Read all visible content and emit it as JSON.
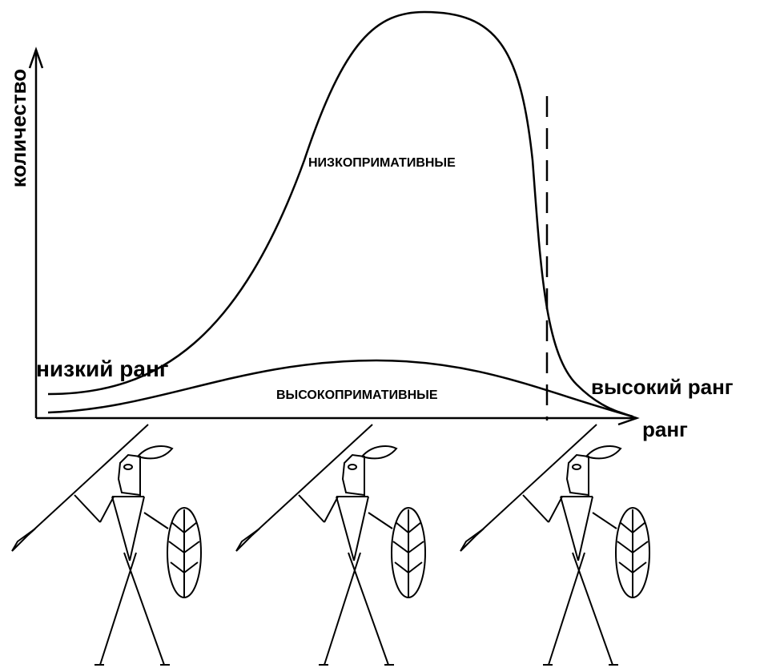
{
  "y_axis_label": "количество",
  "x_axis_label": "ранг",
  "low_rank_label": "низкий ранг",
  "high_rank_label": "высокий ранг",
  "upper_region_label": "НИЗКОПРИМАТИВНЫЕ",
  "lower_region_label": "ВЫСОКОПРИМАТИВНЫЕ"
}
